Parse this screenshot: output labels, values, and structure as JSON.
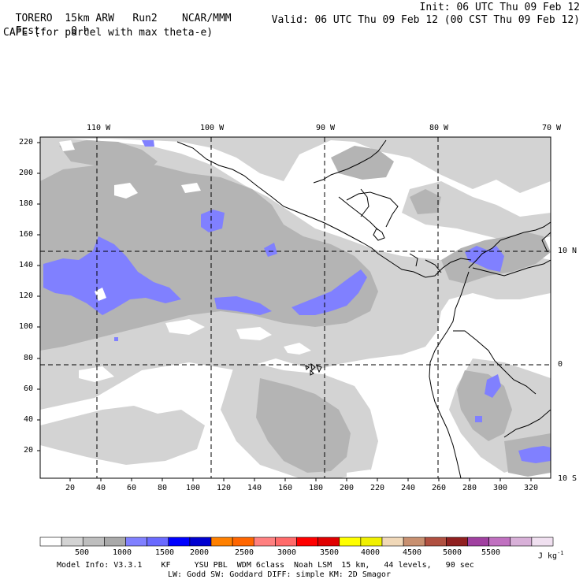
{
  "header": {
    "model": "TORERO",
    "resolution": "15km ARW",
    "run": "Run2",
    "center": "NCAR/MMM",
    "init": "Init: 06 UTC Thu 09 Feb 12",
    "fcst_label": "Fcst:",
    "fcst_value": "0 h",
    "valid": "Valid: 06 UTC Thu 09 Feb 12 (00 CST Thu 09 Feb 12)",
    "field": "CAPE (for parcel with max theta-e)"
  },
  "lon_labels": [
    "110 W",
    "100 W",
    "90 W",
    "80 W",
    "70 W"
  ],
  "lat_labels": [
    "10 N",
    "0",
    "10 S"
  ],
  "y_ticks": [
    "220",
    "200",
    "180",
    "160",
    "140",
    "120",
    "100",
    "80",
    "60",
    "40",
    "20"
  ],
  "x_ticks": [
    "20",
    "40",
    "60",
    "80",
    "100",
    "120",
    "140",
    "160",
    "180",
    "200",
    "220",
    "240",
    "260",
    "280",
    "300",
    "320"
  ],
  "colorbar": {
    "labels": [
      "500",
      "1000",
      "1500",
      "2000",
      "2500",
      "3000",
      "3500",
      "4000",
      "4500",
      "5000",
      "5500"
    ],
    "units": "J kg",
    "units_exp": "-1",
    "colors": [
      "#ffffff",
      "#d3d3d3",
      "#bebebe",
      "#a9a9a9",
      "#8080ff",
      "#6a6aff",
      "#0000ff",
      "#0000d0",
      "#ff8000",
      "#ff6600",
      "#ff8080",
      "#ff6a6a",
      "#ff0000",
      "#e00000",
      "#ffff00",
      "#f0f000",
      "#f0d8b8",
      "#c89070",
      "#b05040",
      "#902020",
      "#a040a0",
      "#c070c0",
      "#d8b0d8",
      "#f0e0f0"
    ]
  },
  "footer": {
    "line1": "Model Info: V3.3.1    KF     YSU PBL  WDM 6class  Noah LSM  15 km,   44 levels,   90 sec",
    "line2": "LW: Godd SW: Goddard DIFF: simple KM: 2D Smagor"
  },
  "map_colors": {
    "light": "#d3d3d3",
    "medium": "#b4b4b4",
    "blue": "#8080ff",
    "grid": "#000000"
  }
}
